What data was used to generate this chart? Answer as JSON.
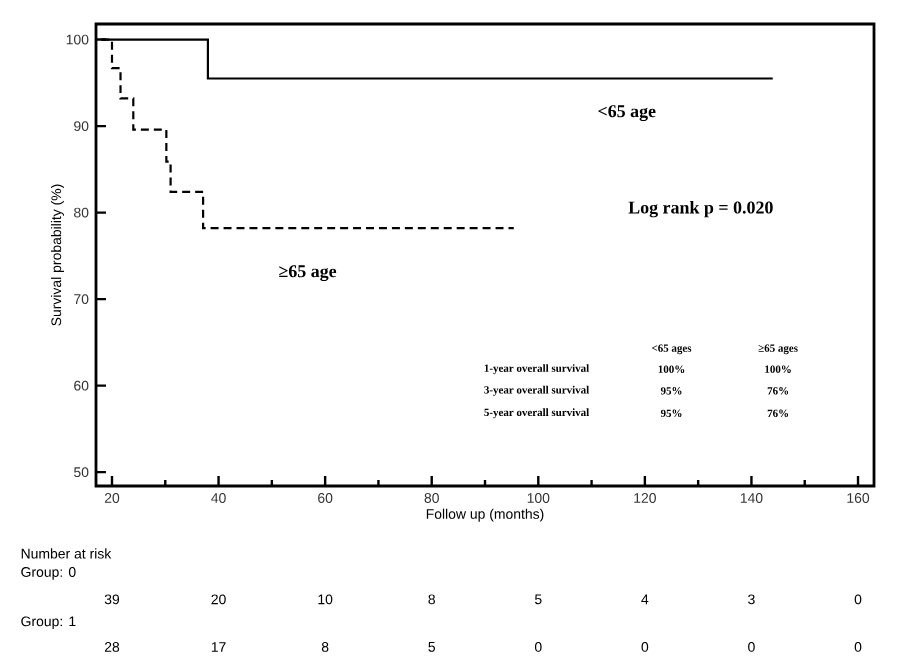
{
  "chart_data": {
    "type": "step",
    "xlabel": "Follow up (months)",
    "ylabel": "Survival probability (%)",
    "xlim": [
      17,
      163
    ],
    "ylim": [
      48.4,
      101.8
    ],
    "xticks": [
      20,
      40,
      60,
      80,
      100,
      120,
      140,
      160
    ],
    "yticks": [
      50,
      60,
      70,
      80,
      90,
      100
    ],
    "series": [
      {
        "color": "#000000",
        "line_style": "solid",
        "x": [
          18,
          38,
          144
        ],
        "values": [
          100,
          95.5,
          95.5
        ]
      },
      {
        "color": "#000000",
        "line_style": "dashed",
        "x": [
          18,
          20,
          21.6,
          24,
          30.2,
          31,
          37.1,
          95.4
        ],
        "values": [
          100,
          96.7,
          93.2,
          89.6,
          85.9,
          82.4,
          78.2,
          78.2
        ]
      }
    ],
    "annotations": [
      "<65 age",
      "≥65 age",
      "Log rank p = 0.020",
      "<65 ages",
      "≥65 ages",
      "1-year overall survival",
      "100%",
      "100%",
      "3-year overall survival",
      "95%",
      "76%",
      "5-year overall survival",
      "95%",
      "76%",
      "Number at risk",
      "Group: 0",
      "39",
      "20",
      "10",
      "8",
      "5",
      "4",
      "3",
      "0",
      "Group: 1",
      "28",
      "17",
      "8",
      "5",
      "0",
      "0",
      "0",
      "0"
    ]
  }
}
